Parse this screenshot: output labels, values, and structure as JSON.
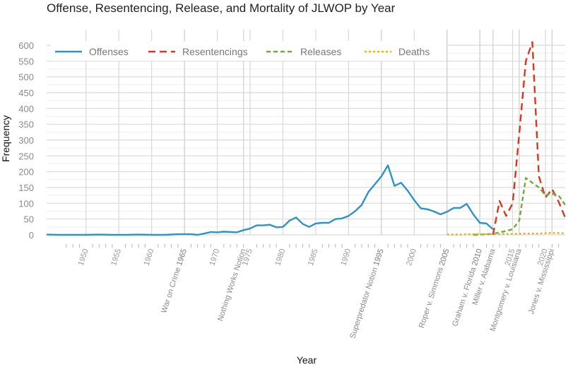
{
  "chart_data": {
    "type": "line",
    "title": "Offense, Resentencing, Release, and Mortality of JLWOP by Year",
    "xlabel": "Year",
    "ylabel": "Frequency",
    "xlim": [
      1944,
      2023
    ],
    "ylim": [
      0,
      600
    ],
    "yticks": [
      0,
      50,
      100,
      150,
      200,
      250,
      300,
      350,
      400,
      450,
      500,
      550,
      600
    ],
    "xticks": [
      1950,
      1955,
      1960,
      1965,
      1970,
      1975,
      1980,
      1985,
      1990,
      1995,
      2000,
      2005,
      2010,
      2015,
      2020
    ],
    "grid": true,
    "legend_position": "top",
    "events": [
      {
        "year": 1965,
        "label": "War on Crime 1965"
      },
      {
        "year": 1974,
        "label": "Nothing Works Notion"
      },
      {
        "year": 1995,
        "label": "Superpredator Notion 1995"
      },
      {
        "year": 2005,
        "label": "Roper v. Simmons 2005"
      },
      {
        "year": 2010,
        "label": "Graham v. Florida 2010"
      },
      {
        "year": 2012,
        "label": "Miller v. Alabama"
      },
      {
        "year": 2016,
        "label": "Montgomery v. Louisiana"
      },
      {
        "year": 2021,
        "label": "Jones v. Mississippi"
      }
    ],
    "series": [
      {
        "name": "Offenses",
        "color": "#2e93c7",
        "dash": "solid",
        "x": [
          1944,
          1946,
          1948,
          1950,
          1952,
          1954,
          1956,
          1958,
          1960,
          1962,
          1964,
          1966,
          1967,
          1968,
          1969,
          1970,
          1971,
          1972,
          1973,
          1974,
          1975,
          1976,
          1977,
          1978,
          1979,
          1980,
          1981,
          1982,
          1983,
          1984,
          1985,
          1986,
          1987,
          1988,
          1989,
          1990,
          1991,
          1992,
          1993,
          1994,
          1995,
          1996,
          1997,
          1998,
          1999,
          2000,
          2001,
          2002,
          2003,
          2004,
          2005,
          2006,
          2007,
          2008,
          2009,
          2010,
          2011,
          2012
        ],
        "y": [
          1,
          0,
          0,
          0,
          1,
          0,
          0,
          1,
          0,
          0,
          2,
          2,
          0,
          4,
          9,
          8,
          10,
          9,
          8,
          15,
          20,
          30,
          30,
          32,
          24,
          25,
          45,
          55,
          35,
          25,
          36,
          38,
          38,
          50,
          52,
          60,
          75,
          95,
          135,
          160,
          185,
          220,
          155,
          165,
          140,
          110,
          84,
          81,
          74,
          65,
          73,
          85,
          85,
          98,
          65,
          38,
          36,
          18
        ]
      },
      {
        "name": "Resentencings",
        "color": "#d9361f",
        "dash": "10,6",
        "x": [
          2012,
          2013,
          2014,
          2015,
          2016,
          2017,
          2018,
          2019,
          2020,
          2021,
          2022,
          2023
        ],
        "y": [
          0,
          107,
          60,
          100,
          320,
          550,
          610,
          185,
          118,
          145,
          105,
          55
        ]
      },
      {
        "name": "Releases",
        "color": "#74a83b",
        "dash": "6,4",
        "x": [
          2009,
          2010,
          2011,
          2012,
          2013,
          2014,
          2015,
          2016,
          2017,
          2018,
          2019,
          2020,
          2021,
          2022,
          2023
        ],
        "y": [
          0,
          1,
          2,
          3,
          8,
          12,
          18,
          45,
          180,
          165,
          150,
          125,
          130,
          125,
          95
        ]
      },
      {
        "name": "Deaths",
        "color": "#e3b413",
        "dash": "3,3",
        "x": [
          2005,
          2007,
          2009,
          2011,
          2013,
          2015,
          2017,
          2019,
          2021,
          2023
        ],
        "y": [
          1,
          1,
          2,
          2,
          3,
          3,
          4,
          4,
          6,
          5
        ]
      }
    ]
  }
}
